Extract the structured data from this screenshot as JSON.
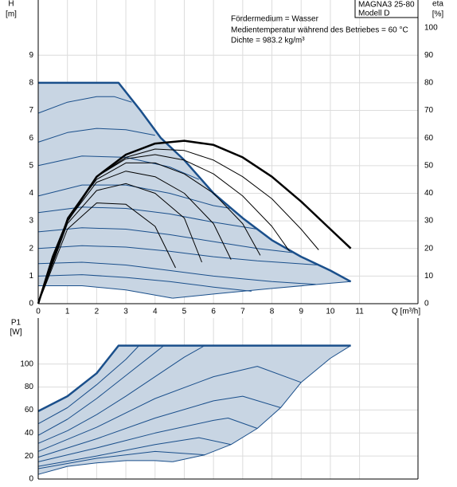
{
  "chart_data": [
    {
      "type": "line",
      "xlim": [
        0,
        13
      ],
      "ylim": [
        0,
        11
      ],
      "y2lim": [
        0,
        110
      ],
      "xticks": [
        0,
        1,
        2,
        3,
        4,
        5,
        6,
        7,
        8,
        9,
        10,
        11
      ],
      "yticks": [
        0,
        1,
        2,
        3,
        4,
        5,
        6,
        7,
        8,
        9
      ],
      "y2ticks": [
        0,
        10,
        20,
        30,
        40,
        50,
        60,
        70,
        80,
        90,
        100
      ],
      "grid": true,
      "xlabel": "Q [m³/h]",
      "ylabel_lines": [
        "H",
        "[m]"
      ],
      "y2label_lines": [
        "eta",
        "[%]"
      ],
      "annotations": [
        "Fördermedium = Wasser",
        "Medientemperatur während des Betriebes = 60 °C",
        "Dichte = 983.2 kg/m³"
      ],
      "model_box": [
        "MAGNA3 25-80",
        "Modell D"
      ],
      "series": [
        {
          "fill": "#c8d5e3",
          "x": [
            0,
            2.75,
            3.5,
            4.2,
            5,
            6,
            7,
            8,
            9,
            10,
            10.7,
            10,
            8,
            6,
            4.6,
            3,
            1.5,
            0
          ],
          "values": [
            8,
            8,
            7,
            6,
            5.2,
            4,
            3.1,
            2.3,
            1.7,
            1.2,
            0.8,
            0.74,
            0.55,
            0.35,
            0.2,
            0.5,
            0.65,
            0.65
          ]
        },
        {
          "color": "#1a4f8b",
          "linewidth": 2.5,
          "x": [
            0,
            2.75,
            3.5,
            4.2,
            5,
            6,
            7,
            8,
            9,
            10,
            10.7
          ],
          "values": [
            8,
            8,
            7,
            6,
            5.2,
            4,
            3.1,
            2.3,
            1.7,
            1.2,
            0.8
          ]
        },
        {
          "color": "#1a4f8b",
          "linewidth": 1,
          "x": [
            4.6,
            6,
            8,
            10,
            10.7
          ],
          "values": [
            0.2,
            0.35,
            0.55,
            0.74,
            0.8
          ]
        },
        {
          "color": "#1a4f8b",
          "linewidth": 1,
          "x": [
            0,
            1,
            2,
            2.6,
            3.2
          ],
          "values": [
            6.9,
            7.3,
            7.5,
            7.5,
            7.3
          ]
        },
        {
          "color": "#1a4f8b",
          "linewidth": 1,
          "x": [
            0,
            1,
            2,
            3,
            4
          ],
          "values": [
            5.85,
            6.2,
            6.35,
            6.3,
            6.1
          ]
        },
        {
          "color": "#1a4f8b",
          "linewidth": 1,
          "x": [
            0,
            1.5,
            3,
            4.5,
            5.5
          ],
          "values": [
            5,
            5.35,
            5.3,
            4.95,
            4.5
          ]
        },
        {
          "color": "#1a4f8b",
          "linewidth": 1,
          "x": [
            0,
            1.5,
            3,
            4.5,
            6,
            6.6
          ],
          "values": [
            3.9,
            4.3,
            4.3,
            4,
            3.55,
            3.45
          ]
        },
        {
          "color": "#1a4f8b",
          "linewidth": 1,
          "x": [
            0,
            1.5,
            3,
            4.5,
            6,
            7.5
          ],
          "values": [
            3.3,
            3.5,
            3.45,
            3.25,
            2.95,
            2.7
          ]
        },
        {
          "color": "#1a4f8b",
          "linewidth": 1,
          "x": [
            0,
            1.5,
            3,
            4.5,
            6,
            7.5,
            8.7
          ],
          "values": [
            2.6,
            2.75,
            2.7,
            2.5,
            2.25,
            2,
            1.85
          ]
        },
        {
          "color": "#1a4f8b",
          "linewidth": 1,
          "x": [
            0,
            1.5,
            3,
            4.5,
            6,
            7.5,
            9.6
          ],
          "values": [
            2,
            2.1,
            2.05,
            1.9,
            1.7,
            1.55,
            1.4
          ]
        },
        {
          "color": "#1a4f8b",
          "linewidth": 1,
          "x": [
            0,
            1.5,
            3,
            4.5,
            6,
            8,
            9.5
          ],
          "values": [
            1.45,
            1.5,
            1.4,
            1.2,
            1,
            0.8,
            0.7
          ]
        },
        {
          "color": "#1a4f8b",
          "linewidth": 1,
          "x": [
            0,
            1.5,
            3,
            4.5,
            6,
            7.3
          ],
          "values": [
            1,
            1.05,
            0.95,
            0.8,
            0.6,
            0.45
          ]
        },
        {
          "color": "#1a4f8b",
          "linewidth": 1,
          "x": [
            0,
            1.5,
            3,
            4.6
          ],
          "values": [
            0.65,
            0.65,
            0.5,
            0.2
          ]
        },
        {
          "color": "#000000",
          "linewidth": 1,
          "axis": "y2",
          "x": [
            0,
            1,
            2,
            3,
            4,
            4.7
          ],
          "values": [
            0,
            27,
            36.5,
            36,
            28,
            13
          ]
        },
        {
          "color": "#000000",
          "linewidth": 1,
          "axis": "y2",
          "x": [
            0,
            1,
            2,
            3,
            4,
            5,
            5.6
          ],
          "values": [
            0,
            29,
            41,
            43.5,
            40,
            31,
            15
          ]
        },
        {
          "color": "#000000",
          "linewidth": 1,
          "axis": "y2",
          "x": [
            0,
            1,
            2,
            3,
            4,
            5,
            6,
            6.6
          ],
          "values": [
            0,
            30,
            44,
            48,
            46,
            40,
            29,
            16
          ]
        },
        {
          "color": "#000000",
          "linewidth": 1,
          "axis": "y2",
          "x": [
            0,
            1,
            2,
            3,
            4,
            5,
            6,
            7,
            7.6
          ],
          "values": [
            0,
            31,
            45,
            51,
            51,
            47,
            40,
            29,
            17.5
          ]
        },
        {
          "color": "#000000",
          "linewidth": 1,
          "axis": "y2",
          "x": [
            0,
            1,
            2,
            3,
            4,
            5,
            6,
            7,
            8,
            8.6
          ],
          "values": [
            0,
            31,
            46,
            52.5,
            54,
            52,
            47,
            39,
            28,
            19
          ]
        },
        {
          "color": "#000000",
          "linewidth": 1,
          "axis": "y2",
          "x": [
            0,
            1,
            2,
            3,
            4,
            5,
            6,
            7,
            8,
            9,
            9.6
          ],
          "values": [
            0,
            31,
            46,
            53,
            56,
            55.5,
            52,
            46,
            38,
            27,
            19.5
          ]
        },
        {
          "color": "#000000",
          "linewidth": 2.5,
          "axis": "y2",
          "x": [
            0,
            0.5,
            1,
            2,
            3,
            4,
            5,
            6,
            7,
            8,
            9,
            10,
            10.7
          ],
          "values": [
            0,
            17,
            30,
            46,
            54,
            58,
            59,
            57.5,
            53,
            46,
            37,
            27,
            20
          ]
        }
      ]
    },
    {
      "type": "line",
      "xlim": [
        0,
        13
      ],
      "ylim": [
        0,
        140
      ],
      "yticks": [
        0,
        20,
        40,
        60,
        80,
        100
      ],
      "grid": true,
      "ylabel_lines": [
        "P1",
        "[W]"
      ],
      "series": [
        {
          "fill": "#c8d5e3",
          "x": [
            0,
            1,
            2,
            2.75,
            10.7,
            10,
            9,
            8.3,
            7.5,
            6.6,
            5.7,
            4.6,
            4,
            3,
            2,
            1,
            0
          ],
          "values": [
            59,
            72,
            92,
            116,
            116,
            105,
            84,
            62,
            44,
            30,
            21,
            15,
            16,
            16,
            14,
            11,
            4
          ]
        },
        {
          "color": "#1a4f8b",
          "linewidth": 2.5,
          "x": [
            0,
            1,
            2,
            2.75,
            10.7
          ],
          "values": [
            59,
            72,
            92,
            116,
            116
          ]
        },
        {
          "color": "#1a4f8b",
          "linewidth": 1,
          "x": [
            10.7,
            10,
            9,
            8.3,
            7.5,
            6.6,
            5.7,
            4.6
          ],
          "values": [
            116,
            105,
            84,
            62,
            44,
            30,
            21,
            15
          ]
        },
        {
          "color": "#1a4f8b",
          "linewidth": 1,
          "x": [
            0,
            1,
            2,
            3,
            3.45
          ],
          "values": [
            48,
            62,
            82,
            104,
            116
          ]
        },
        {
          "color": "#1a4f8b",
          "linewidth": 1,
          "x": [
            0,
            1,
            2,
            3,
            4,
            4.3
          ],
          "values": [
            38,
            52,
            70,
            90,
            110,
            116
          ]
        },
        {
          "color": "#1a4f8b",
          "linewidth": 1,
          "x": [
            0,
            1,
            2,
            3,
            4,
            5,
            5.7
          ],
          "values": [
            31,
            42,
            56,
            72,
            89,
            106,
            116
          ]
        },
        {
          "color": "#1a4f8b",
          "linewidth": 1,
          "x": [
            0,
            2,
            4,
            6,
            7.5,
            9
          ],
          "values": [
            24,
            45,
            70,
            89,
            98,
            84
          ]
        },
        {
          "color": "#1a4f8b",
          "linewidth": 1,
          "x": [
            0,
            2,
            4,
            6,
            7,
            8.3
          ],
          "values": [
            19,
            35,
            53,
            68,
            72,
            62
          ]
        },
        {
          "color": "#1a4f8b",
          "linewidth": 1,
          "x": [
            0,
            2,
            4,
            6,
            6.5,
            7.5
          ],
          "values": [
            15,
            27,
            40,
            51,
            53,
            44
          ]
        },
        {
          "color": "#1a4f8b",
          "linewidth": 1,
          "x": [
            0,
            2,
            4,
            5.5,
            6.6
          ],
          "values": [
            11,
            20,
            30,
            36,
            30
          ]
        },
        {
          "color": "#1a4f8b",
          "linewidth": 1,
          "x": [
            0,
            2,
            4,
            5.7
          ],
          "values": [
            9,
            18,
            24,
            21
          ]
        },
        {
          "color": "#1a4f8b",
          "linewidth": 1,
          "x": [
            0,
            1,
            2,
            3,
            4,
            4.6
          ],
          "values": [
            4,
            11,
            14,
            16,
            16,
            15
          ]
        }
      ]
    }
  ]
}
